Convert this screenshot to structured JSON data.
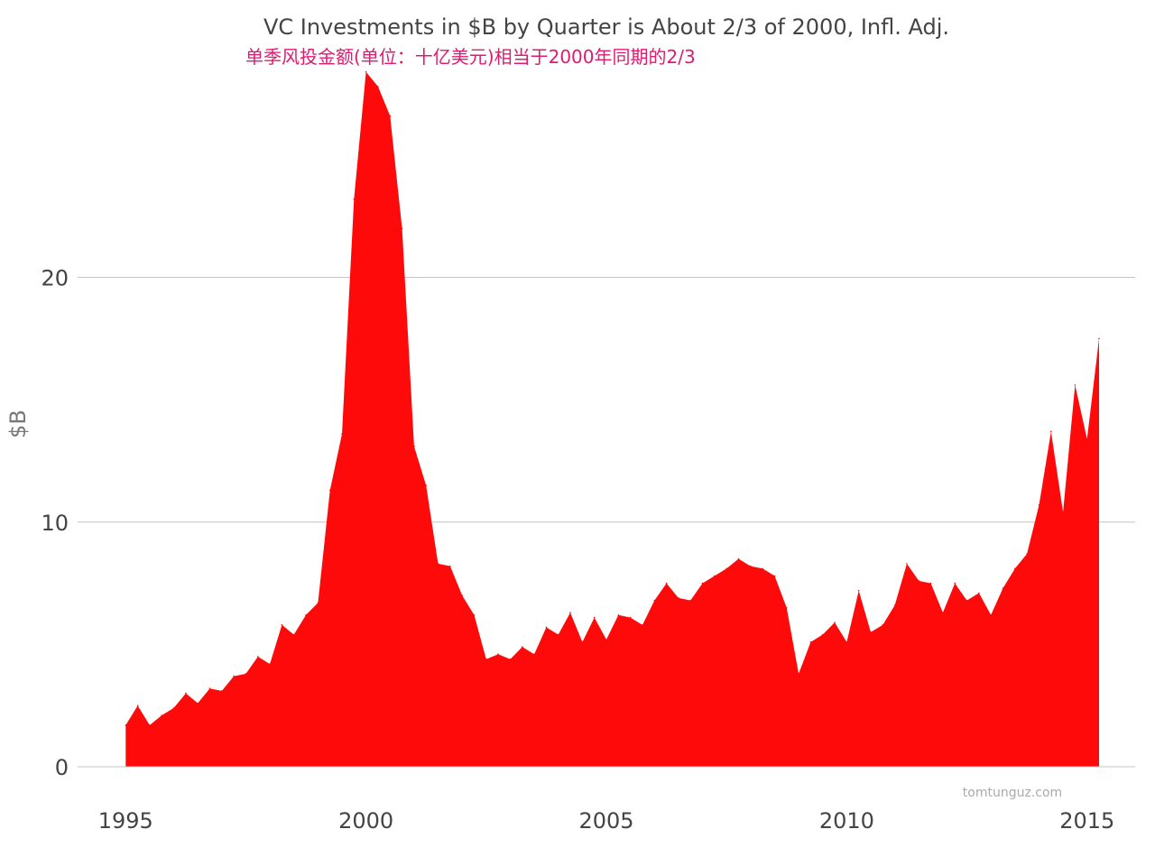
{
  "chart_data": {
    "type": "area",
    "title": "VC Investments in $B by Quarter is About 2/3 of 2000, Infl. Adj.",
    "subtitle": "单季风投金额(单位：十亿美元)相当于2000年同期的2/3",
    "xlabel": "",
    "ylabel": "$B",
    "xlim": [
      1994.0,
      2016.0
    ],
    "ylim": [
      0,
      28.5
    ],
    "xticks": [
      1995,
      2000,
      2005,
      2010,
      2015
    ],
    "yticks": [
      0,
      10,
      20
    ],
    "grid": true,
    "fill_color": "#ff0a0a",
    "watermark": "tomtunguz.com",
    "series": [
      {
        "values": [
          [
            1995.0,
            1.7
          ],
          [
            1995.25,
            2.5
          ],
          [
            1995.5,
            1.7
          ],
          [
            1995.75,
            2.1
          ],
          [
            1996.0,
            2.4
          ],
          [
            1996.25,
            3.0
          ],
          [
            1996.5,
            2.6
          ],
          [
            1996.75,
            3.2
          ],
          [
            1997.0,
            3.1
          ],
          [
            1997.25,
            3.7
          ],
          [
            1997.5,
            3.8
          ],
          [
            1997.75,
            4.5
          ],
          [
            1998.0,
            4.2
          ],
          [
            1998.25,
            5.8
          ],
          [
            1998.5,
            5.4
          ],
          [
            1998.75,
            6.2
          ],
          [
            1999.0,
            6.7
          ],
          [
            1999.25,
            11.3
          ],
          [
            1999.5,
            13.6
          ],
          [
            1999.75,
            23.2
          ],
          [
            2000.0,
            28.4
          ],
          [
            2000.25,
            27.8
          ],
          [
            2000.5,
            26.6
          ],
          [
            2000.75,
            22.0
          ],
          [
            2001.0,
            13.1
          ],
          [
            2001.25,
            11.5
          ],
          [
            2001.5,
            8.3
          ],
          [
            2001.75,
            8.2
          ],
          [
            2002.0,
            7.0
          ],
          [
            2002.25,
            6.2
          ],
          [
            2002.5,
            4.4
          ],
          [
            2002.75,
            4.6
          ],
          [
            2003.0,
            4.4
          ],
          [
            2003.25,
            4.9
          ],
          [
            2003.5,
            4.6
          ],
          [
            2003.75,
            5.7
          ],
          [
            2004.0,
            5.4
          ],
          [
            2004.25,
            6.3
          ],
          [
            2004.5,
            5.1
          ],
          [
            2004.75,
            6.1
          ],
          [
            2005.0,
            5.2
          ],
          [
            2005.25,
            6.2
          ],
          [
            2005.5,
            6.1
          ],
          [
            2005.75,
            5.8
          ],
          [
            2006.0,
            6.8
          ],
          [
            2006.25,
            7.5
          ],
          [
            2006.5,
            6.9
          ],
          [
            2006.75,
            6.8
          ],
          [
            2007.0,
            7.5
          ],
          [
            2007.25,
            7.8
          ],
          [
            2007.5,
            8.1
          ],
          [
            2007.75,
            8.5
          ],
          [
            2008.0,
            8.2
          ],
          [
            2008.25,
            8.1
          ],
          [
            2008.5,
            7.8
          ],
          [
            2008.75,
            6.5
          ],
          [
            2009.0,
            3.8
          ],
          [
            2009.25,
            5.1
          ],
          [
            2009.5,
            5.4
          ],
          [
            2009.75,
            5.9
          ],
          [
            2010.0,
            5.1
          ],
          [
            2010.25,
            7.2
          ],
          [
            2010.5,
            5.5
          ],
          [
            2010.75,
            5.8
          ],
          [
            2011.0,
            6.6
          ],
          [
            2011.25,
            8.3
          ],
          [
            2011.5,
            7.6
          ],
          [
            2011.75,
            7.5
          ],
          [
            2012.0,
            6.3
          ],
          [
            2012.25,
            7.5
          ],
          [
            2012.5,
            6.8
          ],
          [
            2012.75,
            7.1
          ],
          [
            2013.0,
            6.2
          ],
          [
            2013.25,
            7.3
          ],
          [
            2013.5,
            8.1
          ],
          [
            2013.75,
            8.7
          ],
          [
            2014.0,
            10.7
          ],
          [
            2014.25,
            13.7
          ],
          [
            2014.5,
            10.4
          ],
          [
            2014.75,
            15.6
          ],
          [
            2015.0,
            13.4
          ],
          [
            2015.25,
            17.5
          ]
        ]
      }
    ]
  }
}
